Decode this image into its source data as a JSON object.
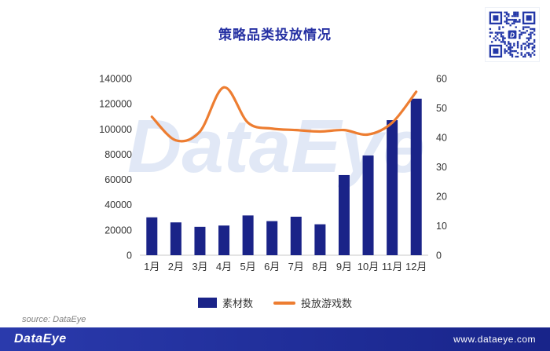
{
  "title": "策略品类投放情况",
  "watermark": "DataEye",
  "source": "source: DataEye",
  "footer": {
    "logo": "DataEye",
    "url": "www.dataeye.com"
  },
  "icons": {
    "qr": "qr-code"
  },
  "colors": {
    "title": "#2631a3",
    "bar": "#1a2388",
    "line": "#ed7d31",
    "axis_text": "#333333",
    "axis_line": "#c9c9c9",
    "footer_bg_left": "#2a3aac",
    "footer_bg_right": "#18248a",
    "qr": "#2438a8",
    "watermark": "#c9d7ef"
  },
  "legend": [
    {
      "label": "素材数",
      "type": "bar"
    },
    {
      "label": "投放游戏数",
      "type": "line"
    }
  ],
  "chart_data": {
    "type": "bar",
    "subtype": "bar+line combo, dual axis",
    "title": "策略品类投放情况",
    "categories": [
      "1月",
      "2月",
      "3月",
      "4月",
      "5月",
      "6月",
      "7月",
      "8月",
      "9月",
      "10月",
      "11月",
      "12月"
    ],
    "series": [
      {
        "name": "素材数",
        "type": "bar",
        "axis": "left",
        "values": [
          30000,
          26000,
          22500,
          23500,
          31500,
          27000,
          30500,
          24500,
          63500,
          79000,
          107000,
          124000
        ]
      },
      {
        "name": "投放游戏数",
        "type": "line",
        "axis": "right",
        "values": [
          47,
          39,
          42,
          57,
          45,
          43,
          42.5,
          42,
          42.5,
          41,
          45,
          55.5
        ]
      }
    ],
    "left_axis": {
      "min": 0,
      "max": 140000,
      "step": 20000
    },
    "right_axis": {
      "min": 0,
      "max": 60,
      "step": 10
    },
    "grid": false,
    "legend_position": "bottom"
  }
}
